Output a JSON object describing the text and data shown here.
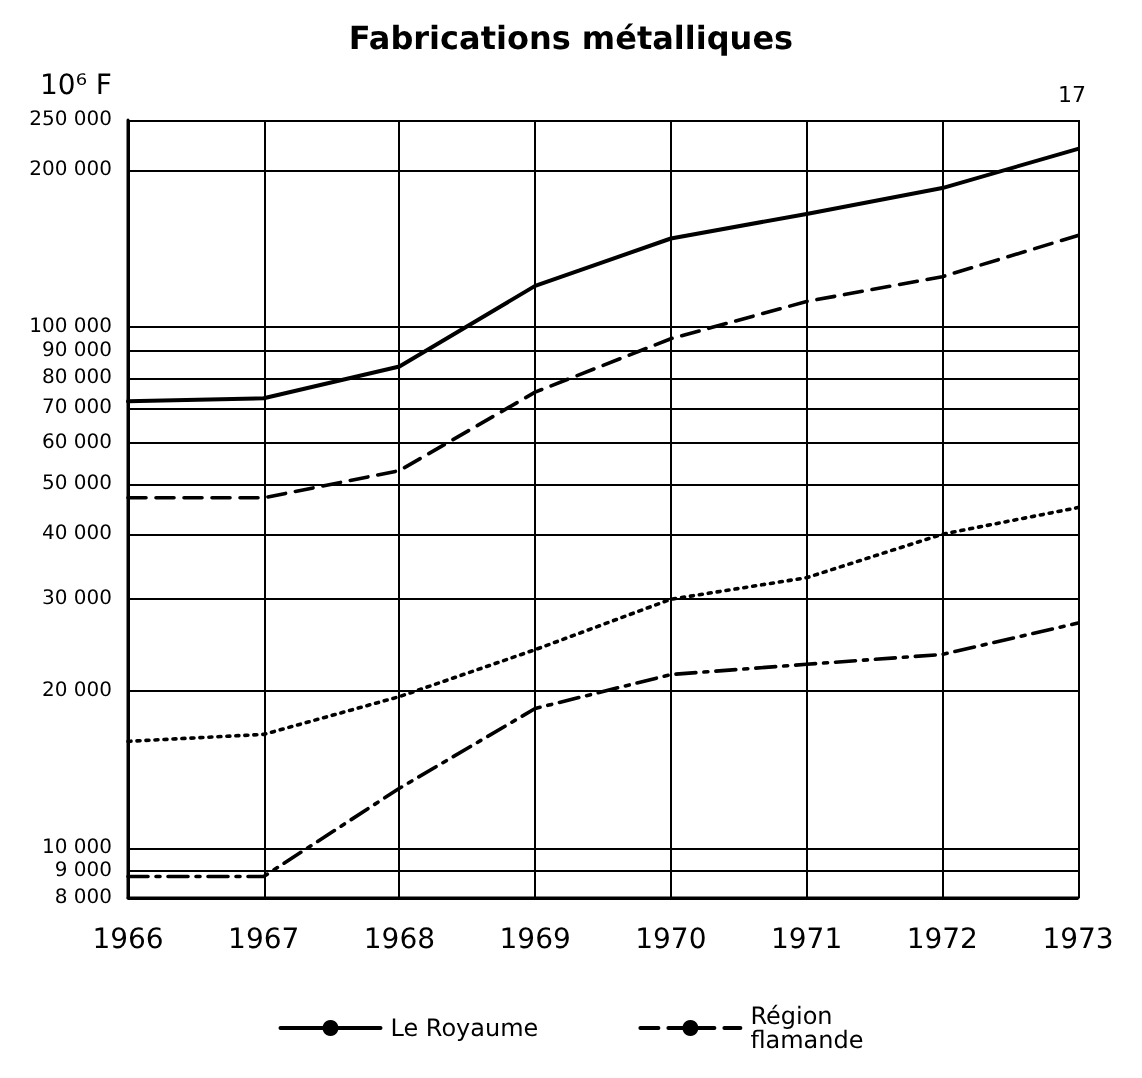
{
  "chart_data": {
    "type": "line",
    "title": "Fabrications métalliques",
    "ylabel": "10⁶ F",
    "annotations": [
      "17"
    ],
    "x": [
      1966,
      1967,
      1968,
      1969,
      1970,
      1971,
      1972,
      1973
    ],
    "xlim": [
      1966,
      1973
    ],
    "xticks": [
      1966,
      1967,
      1968,
      1969,
      1970,
      1971,
      1972,
      1973
    ],
    "ylim": [
      8000,
      250000
    ],
    "log": true,
    "yticks": [
      {
        "value": 8000,
        "label": "8 000"
      },
      {
        "value": 9000,
        "label": "9 000"
      },
      {
        "value": 10000,
        "label": "10 000"
      },
      {
        "value": 20000,
        "label": "20 000"
      },
      {
        "value": 30000,
        "label": "30 000"
      },
      {
        "value": 40000,
        "label": "40 000"
      },
      {
        "value": 50000,
        "label": "50 000"
      },
      {
        "value": 60000,
        "label": "60 000"
      },
      {
        "value": 70000,
        "label": "70 000"
      },
      {
        "value": 80000,
        "label": "80 000"
      },
      {
        "value": 90000,
        "label": "90 000"
      },
      {
        "value": 100000,
        "label": "100 000"
      },
      {
        "value": 200000,
        "label": "200 000"
      },
      {
        "value": 250000,
        "label": "250 000"
      }
    ],
    "grid": true,
    "legend": "bottom",
    "marker": "none",
    "series": [
      {
        "name": "Le Royaume",
        "color": "#000000",
        "line_style": "solid",
        "values": [
          72000,
          73000,
          84000,
          120000,
          148000,
          165000,
          185000,
          220000
        ]
      },
      {
        "name": "Région\nflamande",
        "color": "#000000",
        "line_style": "dashed",
        "values": [
          47000,
          47000,
          53000,
          75000,
          95000,
          112000,
          125000,
          150000
        ]
      },
      {
        "color": "#000000",
        "line_style": "dotted",
        "values": [
          16000,
          16500,
          19500,
          24000,
          30000,
          33000,
          40000,
          45000
        ]
      },
      {
        "color": "#000000",
        "line_style": "dashdot",
        "values": [
          8800,
          8800,
          13000,
          18500,
          21500,
          22500,
          23500,
          27000
        ]
      }
    ]
  }
}
